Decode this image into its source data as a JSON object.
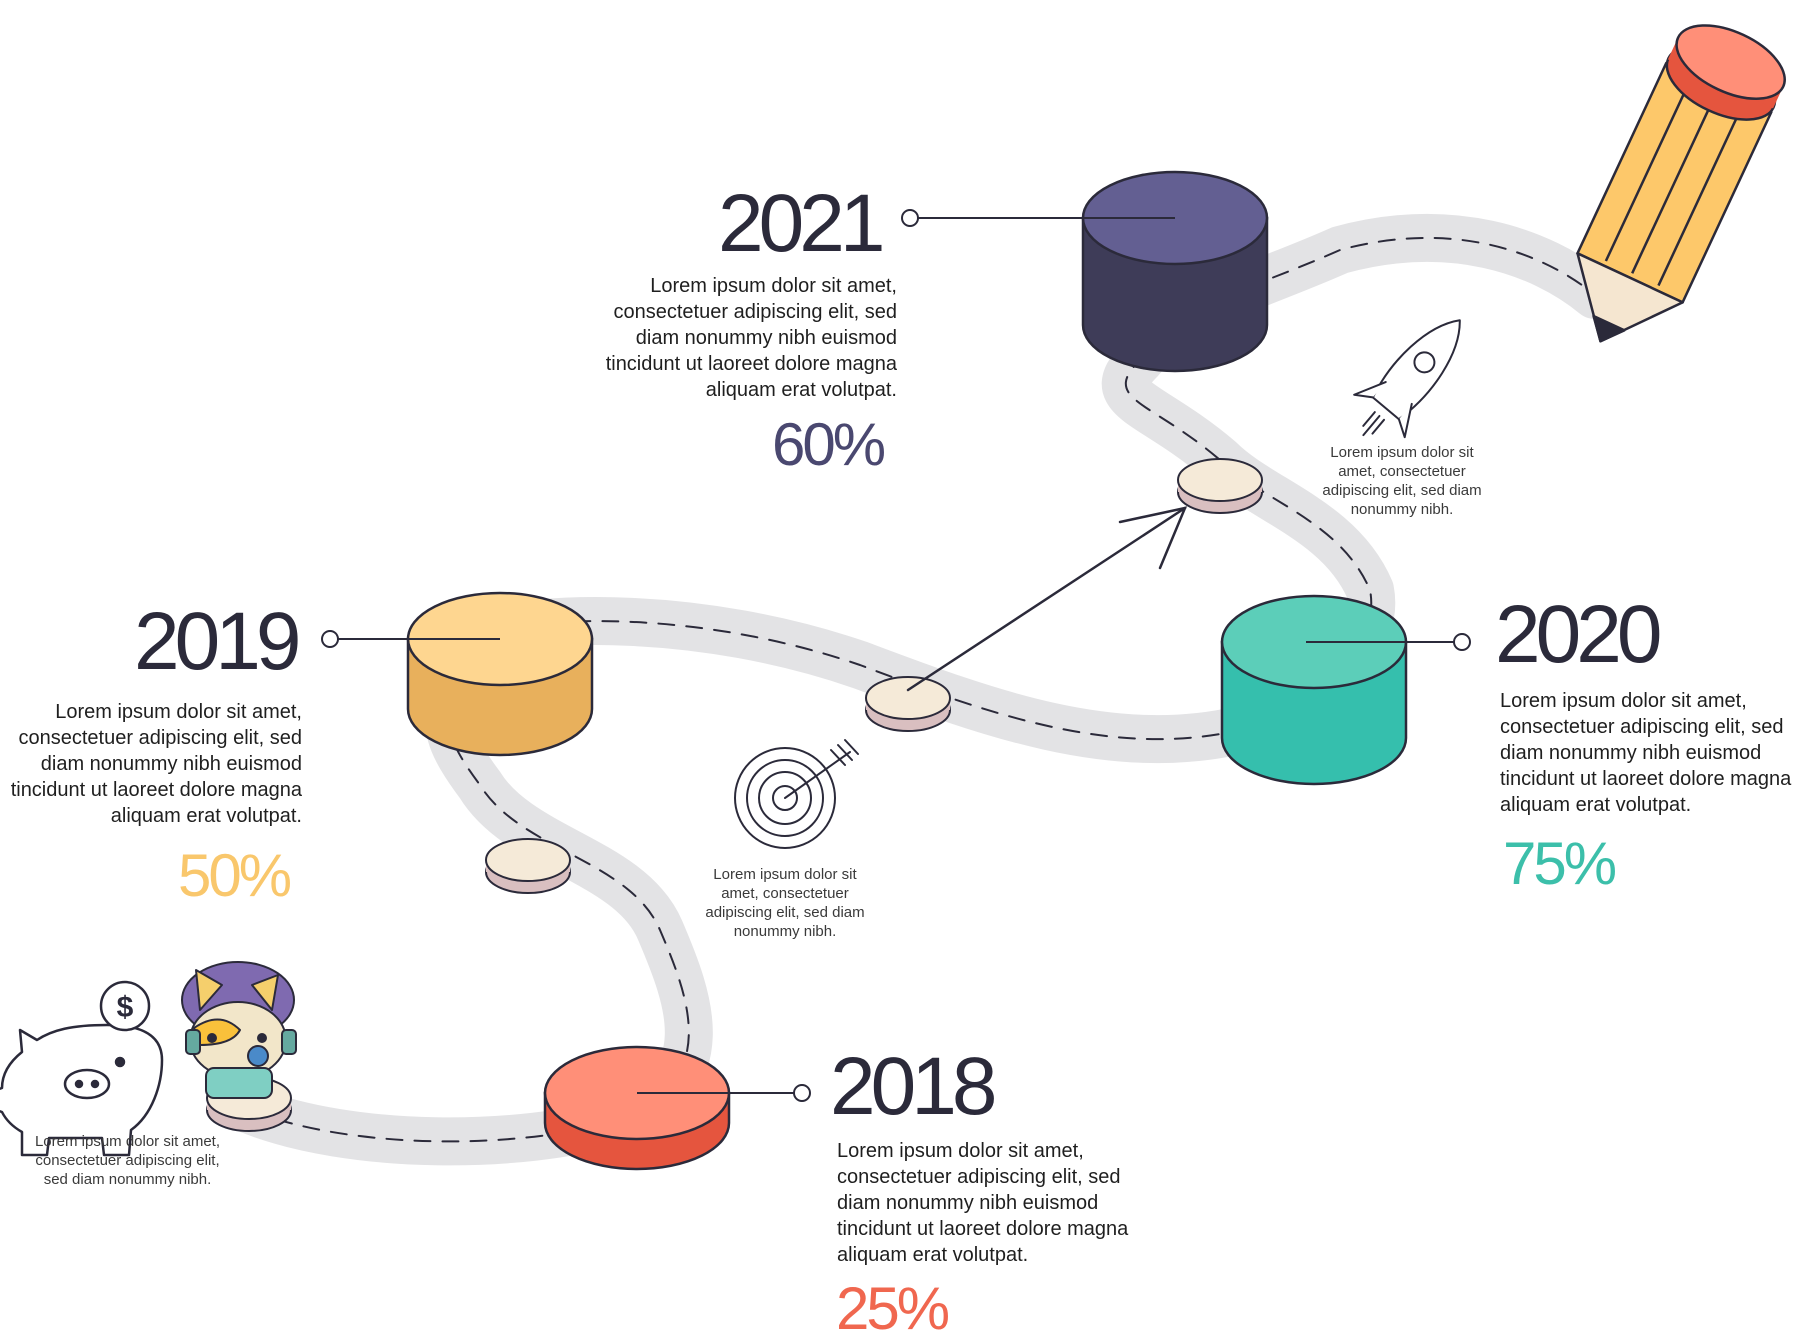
{
  "colors": {
    "road": "#e3e3e5",
    "outline": "#2b2a3a",
    "y2018": "#f0674f",
    "y2019": "#f9c76c",
    "y2020": "#3cbfaa",
    "y2021": "#4a4870"
  },
  "milestones": [
    {
      "year": "2018",
      "text": "Lorem ipsum dolor sit amet, consectetuer adipiscing elit, sed diam nonummy nibh euismod tincidunt ut laoreet dolore magna aliquam erat volutpat.",
      "percent": "25%",
      "percent_value": 25,
      "color": "#f0674f"
    },
    {
      "year": "2019",
      "text": "Lorem ipsum dolor sit amet, consectetuer adipiscing elit, sed diam nonummy nibh euismod tincidunt ut laoreet dolore magna aliquam erat volutpat.",
      "percent": "50%",
      "percent_value": 50,
      "color": "#f9c76c"
    },
    {
      "year": "2020",
      "text": "Lorem ipsum dolor sit amet, consectetuer adipiscing elit, sed diam nonummy nibh euismod tincidunt ut laoreet dolore magna aliquam erat volutpat.",
      "percent": "75%",
      "percent_value": 75,
      "color": "#3cbfaa"
    },
    {
      "year": "2021",
      "text": "Lorem ipsum dolor sit amet, consectetuer adipiscing elit, sed diam nonummy nibh euismod tincidunt ut laoreet dolore magna aliquam erat volutpat.",
      "percent": "60%",
      "percent_value": 60,
      "color": "#4a4870"
    }
  ],
  "notes": {
    "piggy": "Lorem ipsum dolor sit amet, consectetuer adipiscing elit, sed diam nonummy nibh.",
    "target": "Lorem ipsum dolor sit amet, consectetuer adipiscing elit, sed diam nonummy nibh.",
    "rocket": "Lorem ipsum dolor sit amet, consectetuer adipiscing elit, sed diam nonummy nibh."
  },
  "icons": [
    "piggy-bank-icon",
    "dollar-coin-icon",
    "target-icon",
    "rocket-icon",
    "pencil-icon",
    "arrow-icon",
    "cat-mascot"
  ]
}
